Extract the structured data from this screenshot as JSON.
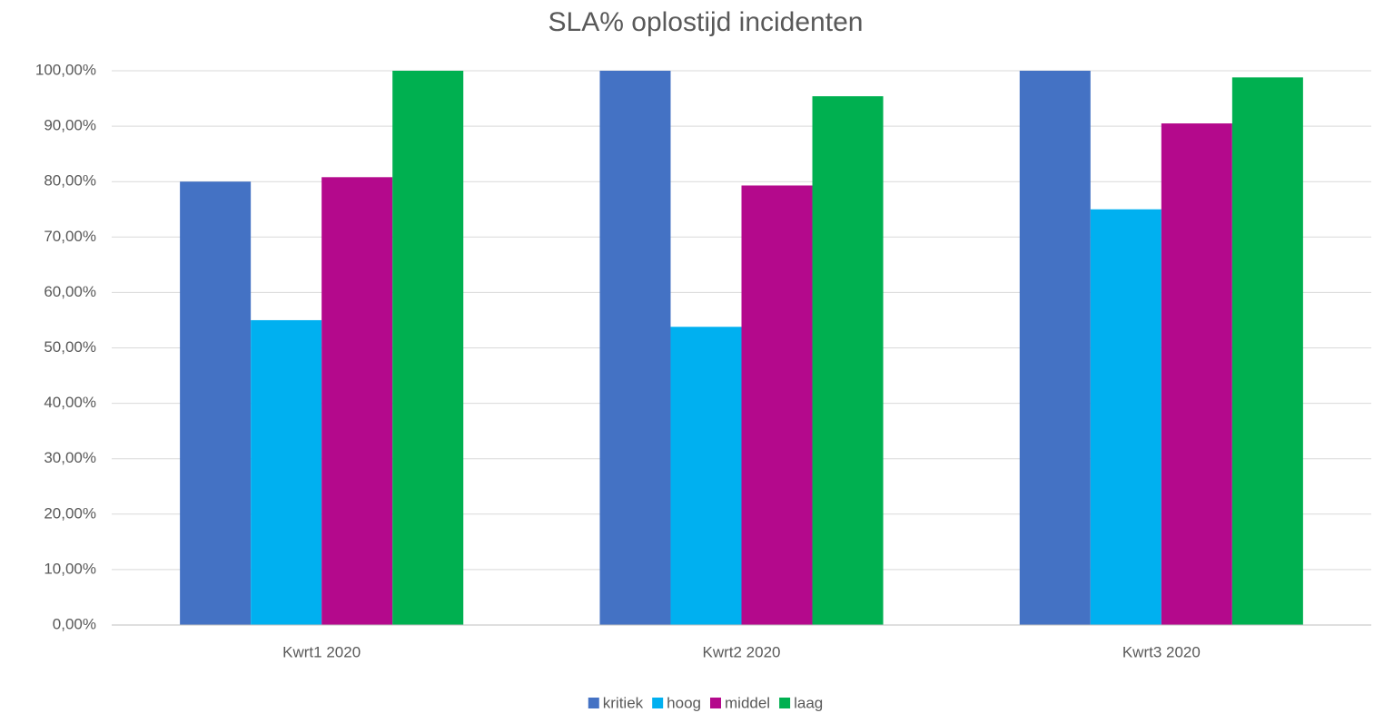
{
  "chart_data": {
    "type": "bar",
    "title": "SLA% oplostijd incidenten",
    "categories": [
      "Kwrt1 2020",
      "Kwrt2 2020",
      "Kwrt3 2020"
    ],
    "series": [
      {
        "name": "kritiek",
        "color": "#4472c4",
        "values": [
          80,
          100,
          100
        ]
      },
      {
        "name": "hoog",
        "color": "#00b0f0",
        "values": [
          55,
          53.8,
          75
        ]
      },
      {
        "name": "middel",
        "color": "#b4098c",
        "values": [
          80.8,
          79.3,
          90.5
        ]
      },
      {
        "name": "laag",
        "color": "#00b050",
        "values": [
          100,
          95.4,
          98.8
        ]
      }
    ],
    "ylim": [
      0,
      100
    ],
    "yticks": [
      {
        "value": 0,
        "label": "0,00%"
      },
      {
        "value": 10,
        "label": "10,00%"
      },
      {
        "value": 20,
        "label": "20,00%"
      },
      {
        "value": 30,
        "label": "30,00%"
      },
      {
        "value": 40,
        "label": "40,00%"
      },
      {
        "value": 50,
        "label": "50,00%"
      },
      {
        "value": 60,
        "label": "60,00%"
      },
      {
        "value": 70,
        "label": "70,00%"
      },
      {
        "value": 80,
        "label": "80,00%"
      },
      {
        "value": 90,
        "label": "90,00%"
      },
      {
        "value": 100,
        "label": "100,00%"
      }
    ],
    "grid": true,
    "legend": "bottom"
  }
}
